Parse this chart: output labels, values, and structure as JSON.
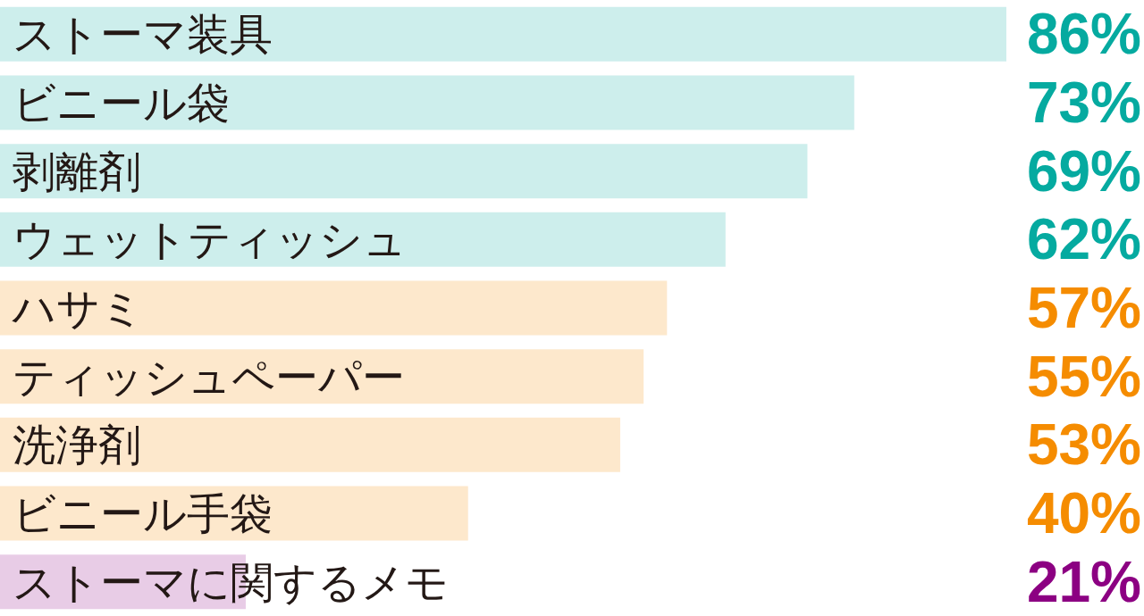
{
  "chart_data": {
    "type": "bar",
    "orientation": "horizontal",
    "categories": [
      "ストーマ装具",
      "ビニール袋",
      "剥離剤",
      "ウェットティッシュ",
      "ハサミ",
      "ティッシュペーパー",
      "洗浄剤",
      "ビニール手袋",
      "ストーマに関するメモ"
    ],
    "values": [
      86,
      73,
      69,
      62,
      57,
      55,
      53,
      40,
      21
    ],
    "value_labels": [
      "86%",
      "73%",
      "69%",
      "62%",
      "57%",
      "55%",
      "53%",
      "40%",
      "21%"
    ],
    "colors": [
      "#cdeeec",
      "#cdeeec",
      "#cdeeec",
      "#cdeeec",
      "#fde8cc",
      "#fde8cc",
      "#fde8cc",
      "#fde8cc",
      "#e8cce6"
    ]
  }
}
